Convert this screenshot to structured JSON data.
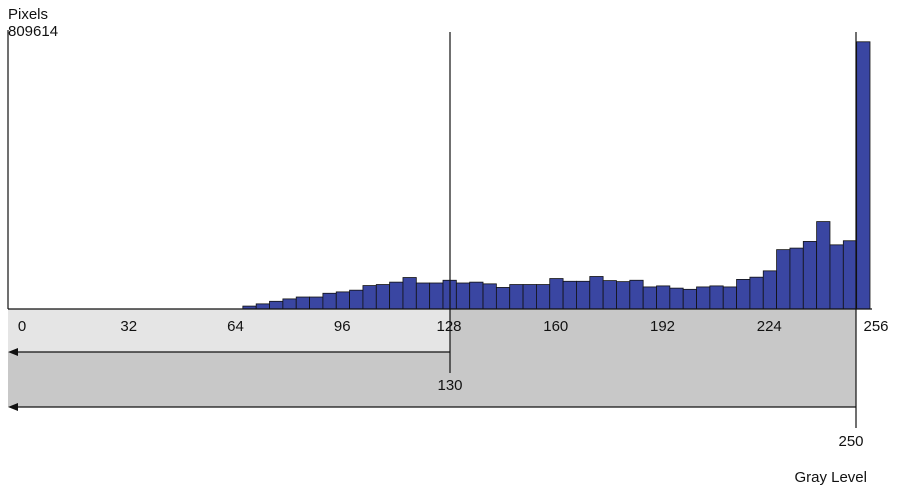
{
  "chart_data": {
    "type": "bar",
    "title": "",
    "ylabel": "Pixels",
    "ymax_label": "809614",
    "xlabel": "Gray Level",
    "xlim": [
      0,
      256
    ],
    "ylim": [
      0,
      809614
    ],
    "bin_width": 4,
    "x_ticks": [
      0,
      32,
      64,
      96,
      128,
      160,
      192,
      224,
      256
    ],
    "values": [
      0,
      0,
      0,
      0,
      0,
      0,
      0,
      0,
      0,
      0,
      0,
      0,
      0,
      0,
      0,
      0,
      0,
      8500,
      15000,
      22500,
      29500,
      35000,
      35000,
      46000,
      50000,
      55000,
      68500,
      71500,
      78500,
      92000,
      76000,
      76000,
      84000,
      76000,
      78500,
      73500,
      63000,
      71500,
      71500,
      71500,
      89000,
      81000,
      81000,
      95000,
      83000,
      80000,
      84000,
      64500,
      67500,
      61000,
      57500,
      64500,
      67500,
      64500,
      86500,
      93000,
      111500,
      173500,
      178000,
      197500,
      255500,
      187500,
      199500,
      781000
    ],
    "thresholds": [
      {
        "value": 130,
        "label": "130"
      },
      {
        "value": 250,
        "label": "250"
      }
    ],
    "colors": {
      "bar": "#3a46a2",
      "bar_edge": "#111111",
      "band_light": "#e5e5e5",
      "band_dark": "#c8c8c8"
    }
  }
}
